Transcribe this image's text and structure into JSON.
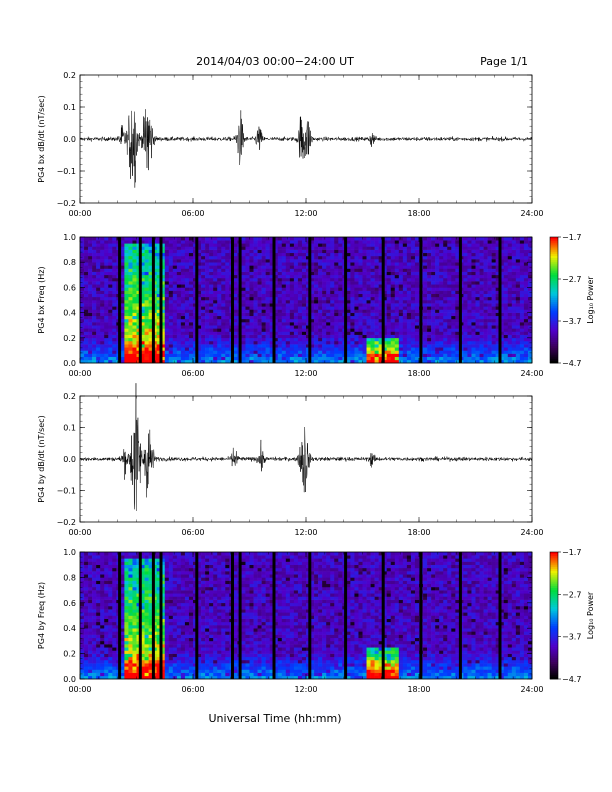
{
  "header": {
    "title": "2014/04/03  00:00−24:00 UT",
    "page": "Page 1/1"
  },
  "footer": {
    "xlabel": "Universal Time (hh:mm)"
  },
  "chart_data": [
    {
      "type": "line",
      "ylabel": "PG4 bx dB/dt (nT/sec)",
      "ylim": [
        -0.2,
        0.2
      ],
      "yticks": [
        "0.2",
        "0.1",
        "0.0",
        "−0.1",
        "−0.2"
      ],
      "xlim": [
        "00:00",
        "24:00"
      ],
      "xticks": [
        "00:00",
        "06:00",
        "12:00",
        "18:00",
        "24:00"
      ],
      "bursts": [
        {
          "t": 2.25,
          "amp": 0.04
        },
        {
          "t": 2.8,
          "amp": 0.17
        },
        {
          "t": 3.6,
          "amp": 0.15
        },
        {
          "t": 8.5,
          "amp": 0.08
        },
        {
          "t": 9.5,
          "amp": 0.04
        },
        {
          "t": 11.8,
          "amp": 0.09
        },
        {
          "t": 12.1,
          "amp": 0.06
        },
        {
          "t": 15.5,
          "amp": 0.02
        }
      ]
    },
    {
      "type": "heatmap",
      "ylabel": "PG4 bx Freq (Hz)",
      "ylim": [
        0.0,
        1.0
      ],
      "yticks": [
        "1.0",
        "0.8",
        "0.6",
        "0.4",
        "0.2",
        "0.0"
      ],
      "xticks": [
        "00:00",
        "06:00",
        "12:00",
        "18:00",
        "24:00"
      ],
      "colorbar": {
        "label": "Log₁₀ Power",
        "range": [
          -4.7,
          -1.7
        ],
        "ticks": [
          "−1.7",
          "−2.7",
          "−3.7",
          "−4.7"
        ]
      },
      "data_gaps_hours": [
        2.1,
        3.2,
        3.9,
        4.3,
        6.2,
        8.1,
        8.5,
        10.3,
        12.2,
        14.1,
        16.1,
        18.1,
        20.2,
        22.3
      ],
      "enhanced_power_intervals": [
        {
          "t0": 2.3,
          "t1": 4.4,
          "fmax": 0.95
        },
        {
          "t0": 15.3,
          "t1": 17.0,
          "fmax": 0.2
        }
      ]
    },
    {
      "type": "line",
      "ylabel": "PG4 by dB/dt (nT/sec)",
      "ylim": [
        -0.2,
        0.2
      ],
      "yticks": [
        "0.2",
        "0.1",
        "0.0",
        "−0.1",
        "−0.2"
      ],
      "xlim": [
        "00:00",
        "24:00"
      ],
      "xticks": [
        "00:00",
        "06:00",
        "12:00",
        "18:00",
        "24:00"
      ],
      "bursts": [
        {
          "t": 2.35,
          "amp": 0.04
        },
        {
          "t": 2.95,
          "amp": 0.2
        },
        {
          "t": 3.65,
          "amp": 0.13
        },
        {
          "t": 8.2,
          "amp": 0.04
        },
        {
          "t": 9.6,
          "amp": 0.04
        },
        {
          "t": 11.9,
          "amp": 0.13
        },
        {
          "t": 15.5,
          "amp": 0.02
        }
      ]
    },
    {
      "type": "heatmap",
      "ylabel": "PG4 by Freq (Hz)",
      "ylim": [
        0.0,
        1.0
      ],
      "yticks": [
        "1.0",
        "0.8",
        "0.6",
        "0.4",
        "0.2",
        "0.0"
      ],
      "xticks": [
        "00:00",
        "06:00",
        "12:00",
        "18:00",
        "24:00"
      ],
      "colorbar": {
        "label": "Log₁₀ Power",
        "range": [
          -4.7,
          -1.7
        ],
        "ticks": [
          "−1.7",
          "−2.7",
          "−3.7",
          "−4.7"
        ]
      },
      "data_gaps_hours": [
        2.1,
        3.2,
        3.9,
        4.3,
        6.2,
        8.1,
        8.5,
        10.3,
        12.2,
        14.1,
        16.1,
        18.1,
        20.2,
        22.3
      ],
      "enhanced_power_intervals": [
        {
          "t0": 2.3,
          "t1": 4.4,
          "fmax": 0.95
        },
        {
          "t0": 15.3,
          "t1": 17.0,
          "fmax": 0.25
        }
      ]
    }
  ]
}
